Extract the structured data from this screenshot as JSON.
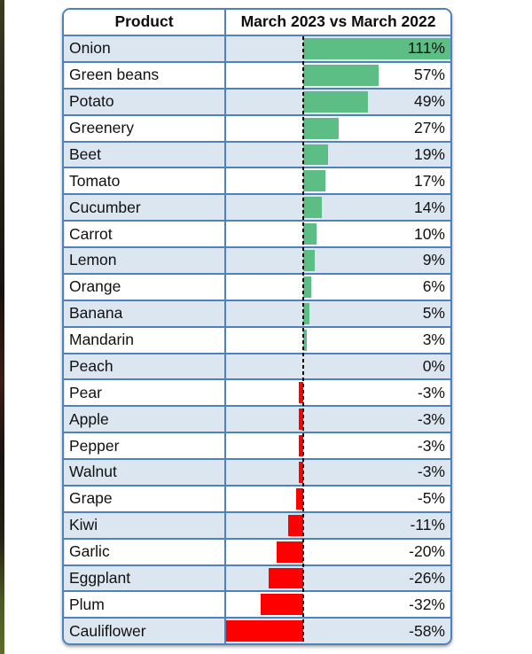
{
  "page": {
    "background": "#ffffff"
  },
  "photo_strip": {
    "description": "dark sliver of background photo at left edge",
    "colors": [
      "#3c3c20",
      "#201c15",
      "#3a1d14",
      "#17130f",
      "#5d6d2a"
    ]
  },
  "table": {
    "header": {
      "product": "Product",
      "comparison": "March 2023 vs March 2022"
    },
    "colors": {
      "border": "#4f81bd",
      "stripe": "#dce6f1",
      "positive_bar": "#5cbe84",
      "negative_bar": "#ff0000",
      "zero_line": "#000000",
      "text": "#111111"
    },
    "axis": {
      "min": -58,
      "max": 111
    },
    "rows": [
      {
        "product": "Onion",
        "value": 111,
        "label": "111%"
      },
      {
        "product": "Green beans",
        "value": 57,
        "label": "57%"
      },
      {
        "product": "Potato",
        "value": 49,
        "label": "49%"
      },
      {
        "product": "Greenery",
        "value": 27,
        "label": "27%"
      },
      {
        "product": "Beet",
        "value": 19,
        "label": "19%"
      },
      {
        "product": "Tomato",
        "value": 17,
        "label": "17%"
      },
      {
        "product": "Cucumber",
        "value": 14,
        "label": "14%"
      },
      {
        "product": "Carrot",
        "value": 10,
        "label": "10%"
      },
      {
        "product": "Lemon",
        "value": 9,
        "label": "9%"
      },
      {
        "product": "Orange",
        "value": 6,
        "label": "6%"
      },
      {
        "product": "Banana",
        "value": 5,
        "label": "5%"
      },
      {
        "product": "Mandarin",
        "value": 3,
        "label": "3%"
      },
      {
        "product": "Peach",
        "value": 0,
        "label": "0%"
      },
      {
        "product": "Pear",
        "value": -3,
        "label": "-3%"
      },
      {
        "product": "Apple",
        "value": -3,
        "label": "-3%"
      },
      {
        "product": "Pepper",
        "value": -3,
        "label": "-3%"
      },
      {
        "product": "Walnut",
        "value": -3,
        "label": "-3%"
      },
      {
        "product": "Grape",
        "value": -5,
        "label": "-5%"
      },
      {
        "product": "Kiwi",
        "value": -11,
        "label": "-11%"
      },
      {
        "product": "Garlic",
        "value": -20,
        "label": "-20%"
      },
      {
        "product": "Eggplant",
        "value": -26,
        "label": "-26%"
      },
      {
        "product": "Plum",
        "value": -32,
        "label": "-32%"
      },
      {
        "product": "Cauliflower",
        "value": -58,
        "label": "-58%"
      }
    ]
  },
  "chart_data": {
    "type": "bar",
    "orientation": "horizontal",
    "title": "March 2023 vs March 2022",
    "xlabel": "",
    "ylabel": "Product",
    "categories": [
      "Onion",
      "Green beans",
      "Potato",
      "Greenery",
      "Beet",
      "Tomato",
      "Cucumber",
      "Carrot",
      "Lemon",
      "Orange",
      "Banana",
      "Mandarin",
      "Peach",
      "Pear",
      "Apple",
      "Pepper",
      "Walnut",
      "Grape",
      "Kiwi",
      "Garlic",
      "Eggplant",
      "Plum",
      "Cauliflower"
    ],
    "values": [
      111,
      57,
      49,
      27,
      19,
      17,
      14,
      10,
      9,
      6,
      5,
      3,
      0,
      -3,
      -3,
      -3,
      -3,
      -5,
      -11,
      -20,
      -26,
      -32,
      -58
    ],
    "value_format": "percent",
    "xlim": [
      -58,
      111
    ],
    "grid": false,
    "legend": false,
    "positive_color": "#5cbe84",
    "negative_color": "#ff0000",
    "zero_axis": "black dashed vertical line"
  }
}
